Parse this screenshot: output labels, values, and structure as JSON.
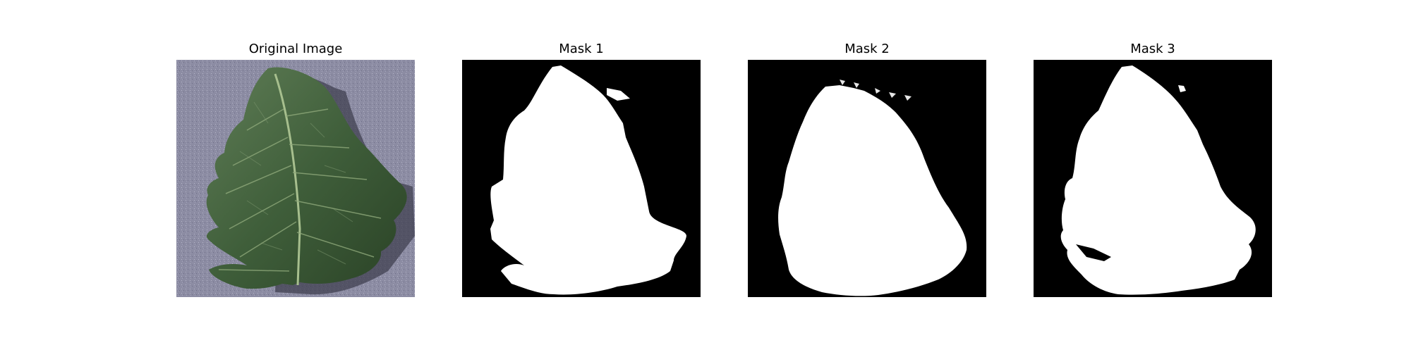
{
  "figure": {
    "panels": [
      {
        "title": "Original Image"
      },
      {
        "title": "Mask 1"
      },
      {
        "title": "Mask 2"
      },
      {
        "title": "Mask 3"
      }
    ]
  },
  "colors": {
    "page_background": "#ffffff",
    "photo_background": "#8c8ca3",
    "leaf_dark": "#2f4a2c",
    "leaf_mid": "#4c6b45",
    "leaf_light": "#7f9a72",
    "vein": "#a7bf8e",
    "mask_background": "#000000",
    "mask_foreground": "#ffffff"
  }
}
